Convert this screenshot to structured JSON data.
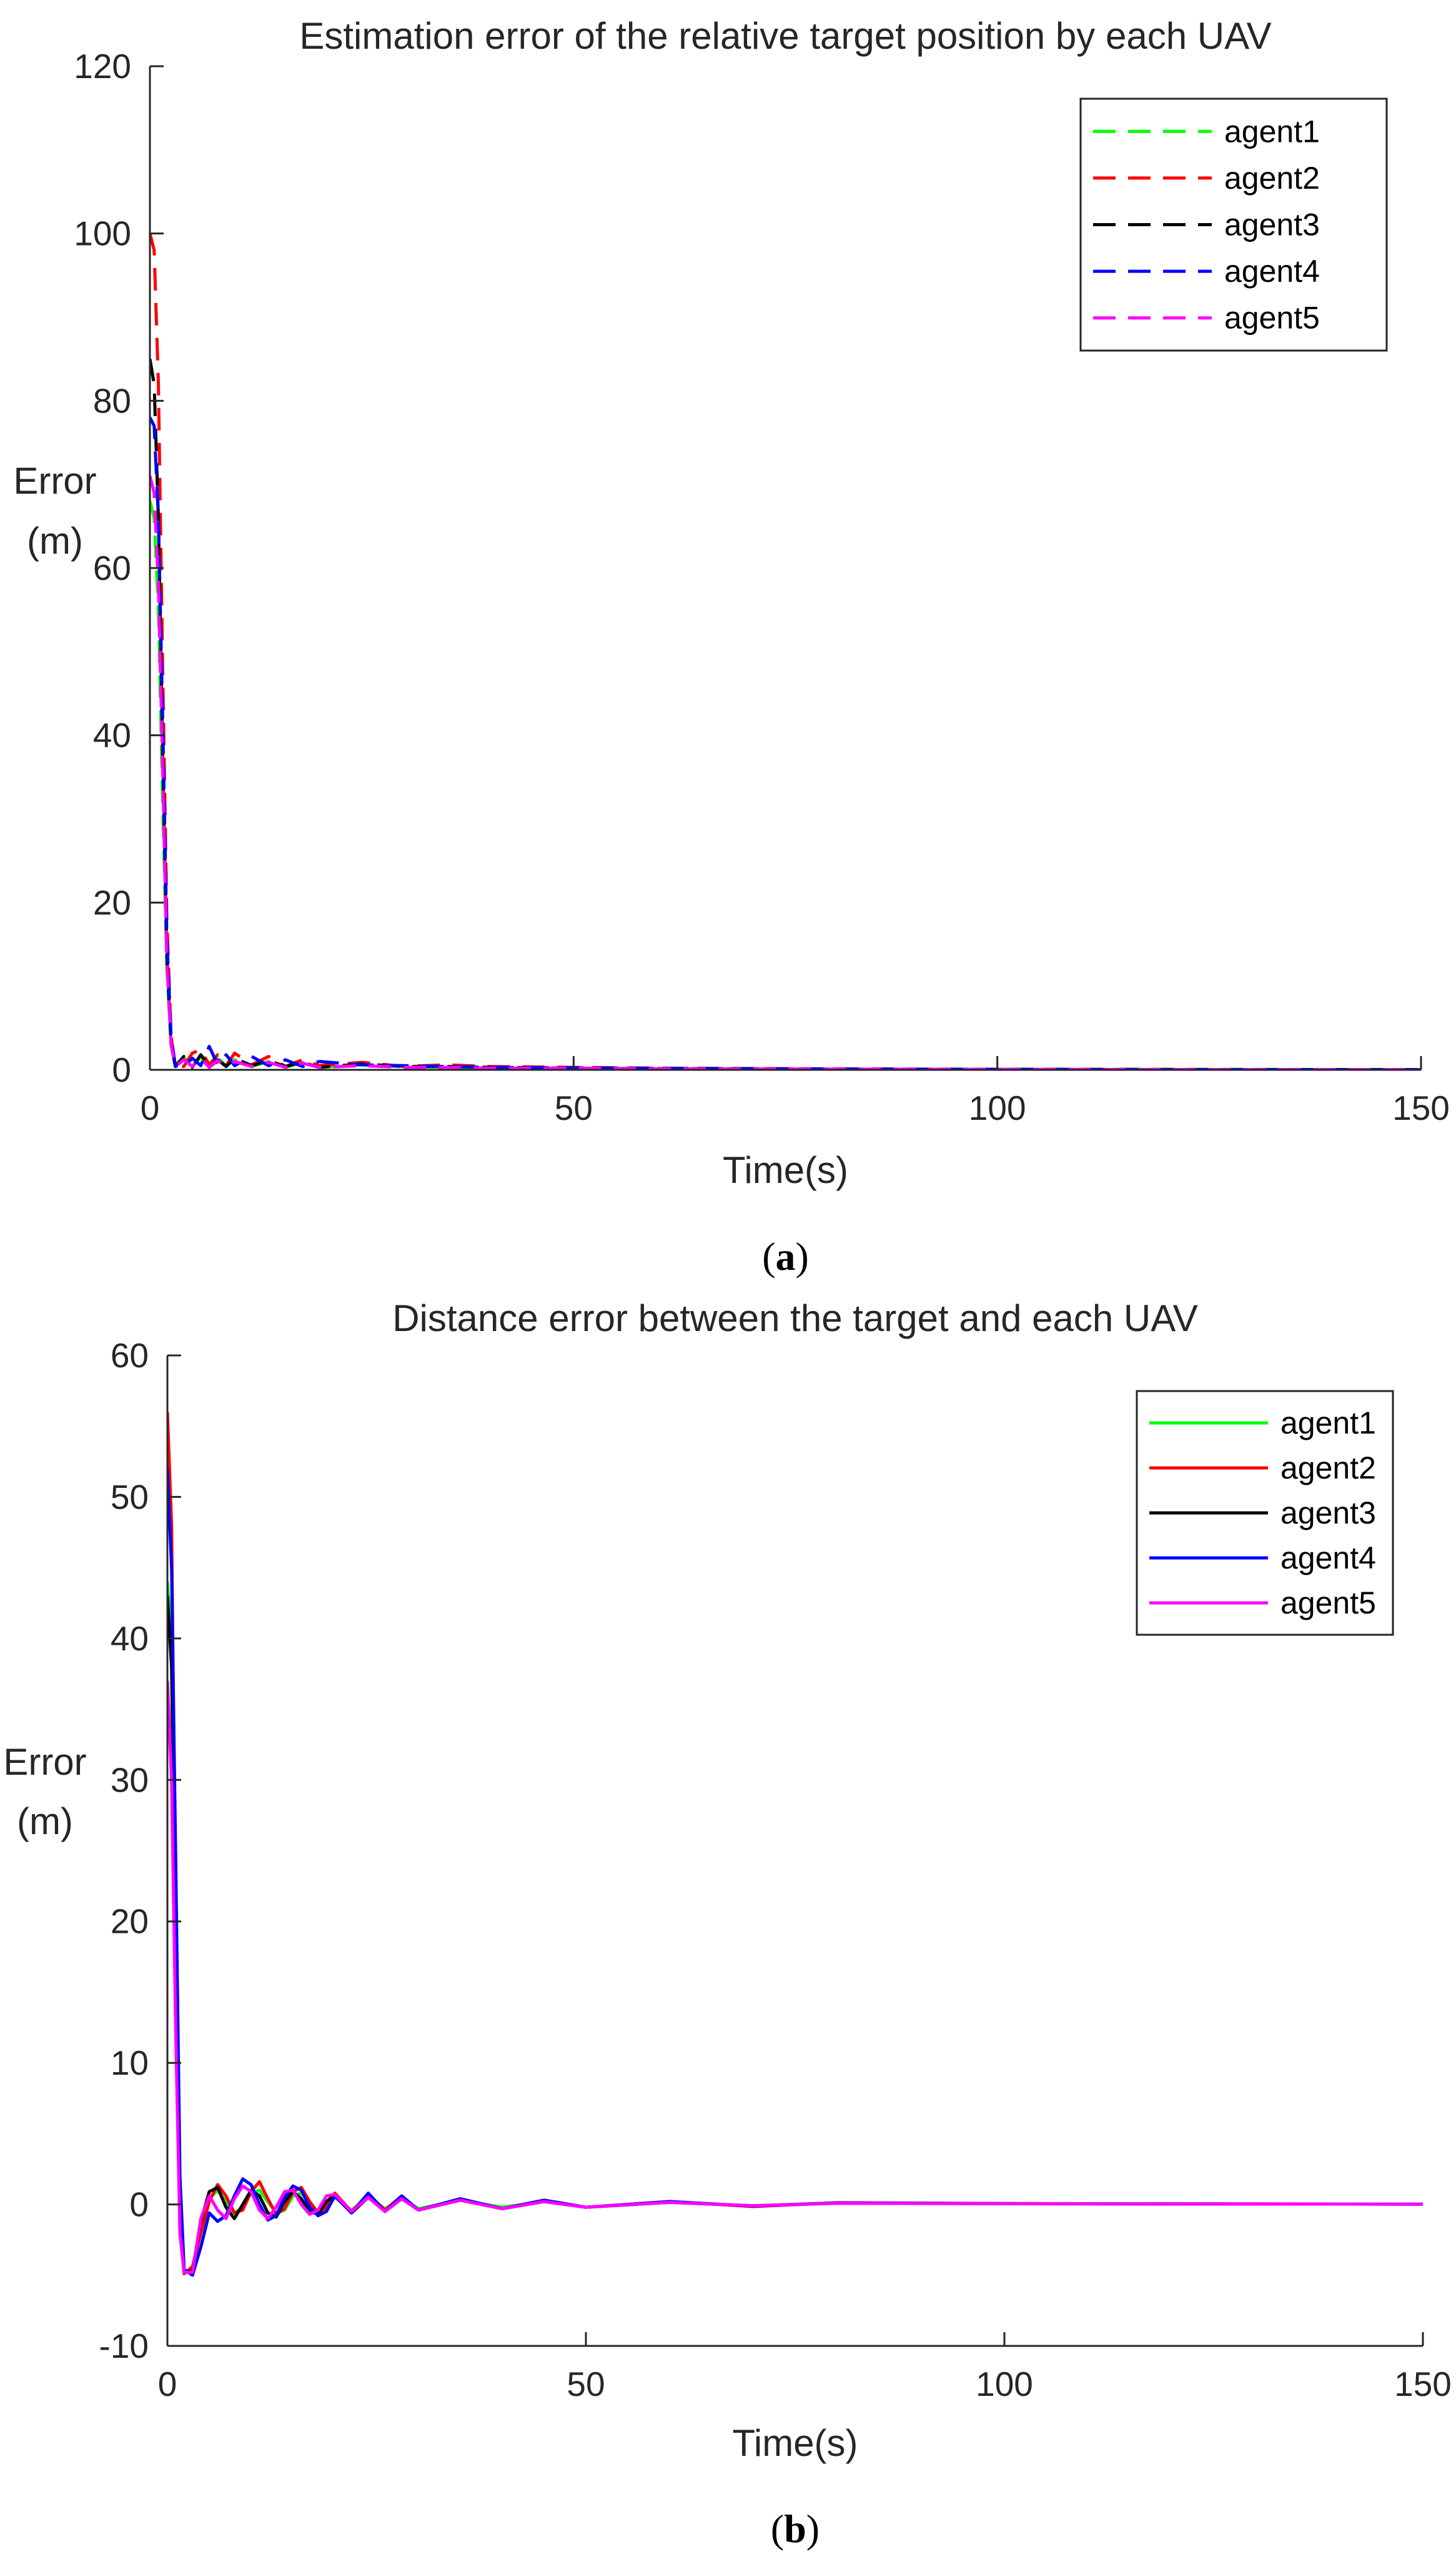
{
  "chart_data": [
    {
      "type": "line",
      "panel_label_open": "(",
      "panel_label": "a",
      "panel_label_close": ")",
      "title": "Estimation error of the relative target position by each UAV",
      "xlabel": "Time(s)",
      "ylabel_line1": "Error",
      "ylabel_line2": "(m)",
      "xlim": [
        0,
        150
      ],
      "ylim": [
        0,
        120
      ],
      "xticks": [
        0,
        50,
        100,
        150
      ],
      "yticks": [
        0,
        20,
        40,
        60,
        80,
        100,
        120
      ],
      "grid": false,
      "legend_position": "top-right",
      "line_style": "dashed",
      "series": [
        {
          "name": "agent1",
          "color": "#00ff00",
          "x": [
            0,
            0.5,
            1,
            1.5,
            2,
            2.5,
            3,
            4,
            5,
            6,
            7,
            8,
            9,
            10,
            12,
            14,
            16,
            18,
            20,
            25,
            30,
            35,
            40,
            50,
            60,
            80,
            100,
            125,
            150
          ],
          "y": [
            68,
            66,
            55,
            32,
            12,
            3,
            0.6,
            1.5,
            0.3,
            1.6,
            0.4,
            1.4,
            0.5,
            1.2,
            0.4,
            1.0,
            0.3,
            0.9,
            0.3,
            0.6,
            0.4,
            0.3,
            0.3,
            0.2,
            0.15,
            0.1,
            0.06,
            0.04,
            0.03
          ]
        },
        {
          "name": "agent2",
          "color": "#ff0000",
          "x": [
            0,
            0.5,
            1,
            1.5,
            2,
            2.5,
            3,
            4,
            5,
            6,
            7,
            8,
            9,
            10,
            12,
            14,
            16,
            18,
            20,
            25,
            30,
            35,
            40,
            50,
            60,
            80,
            100,
            125,
            150
          ],
          "y": [
            100,
            98,
            82,
            48,
            18,
            4,
            0.5,
            0.4,
            2.0,
            2.4,
            0.6,
            1.8,
            0.5,
            2.0,
            0.6,
            1.6,
            0.4,
            1.2,
            0.5,
            0.9,
            0.4,
            0.6,
            0.4,
            0.3,
            0.2,
            0.12,
            0.07,
            0.05,
            0.03
          ]
        },
        {
          "name": "agent3",
          "color": "#000000",
          "x": [
            0,
            0.5,
            1,
            1.5,
            2,
            2.5,
            3,
            4,
            5,
            6,
            7,
            8,
            9,
            10,
            12,
            14,
            16,
            18,
            20,
            25,
            30,
            35,
            40,
            50,
            60,
            80,
            100,
            125,
            150
          ],
          "y": [
            85,
            82,
            66,
            38,
            14,
            3,
            0.4,
            1.6,
            0.3,
            1.8,
            0.5,
            1.2,
            0.4,
            1.4,
            0.5,
            1.1,
            0.4,
            0.9,
            0.3,
            0.7,
            0.4,
            0.4,
            0.3,
            0.2,
            0.15,
            0.1,
            0.06,
            0.04,
            0.03
          ]
        },
        {
          "name": "agent4",
          "color": "#0000ff",
          "x": [
            0,
            0.5,
            1,
            1.5,
            2,
            2.5,
            3,
            4,
            5,
            6,
            7,
            8,
            9,
            10,
            12,
            14,
            16,
            18,
            20,
            25,
            30,
            35,
            40,
            50,
            60,
            80,
            100,
            125,
            150
          ],
          "y": [
            78,
            77,
            66,
            42,
            16,
            4,
            0.5,
            0.3,
            1.4,
            0.5,
            2.8,
            0.6,
            1.8,
            0.5,
            1.6,
            0.5,
            1.2,
            0.4,
            1.0,
            0.6,
            0.5,
            0.4,
            0.3,
            0.25,
            0.18,
            0.1,
            0.06,
            0.04,
            0.03
          ]
        },
        {
          "name": "agent5",
          "color": "#ff00ff",
          "x": [
            0,
            0.5,
            1,
            1.5,
            2,
            2.5,
            3,
            4,
            5,
            6,
            7,
            8,
            9,
            10,
            12,
            14,
            16,
            18,
            20,
            25,
            30,
            35,
            40,
            50,
            60,
            80,
            100,
            125,
            150
          ],
          "y": [
            71,
            69,
            58,
            36,
            13,
            3,
            0.4,
            1.2,
            0.4,
            1.4,
            0.3,
            1.1,
            0.5,
            1.0,
            0.4,
            0.9,
            0.3,
            0.8,
            0.3,
            0.5,
            0.3,
            0.3,
            0.2,
            0.2,
            0.12,
            0.08,
            0.05,
            0.03,
            0.02
          ]
        }
      ]
    },
    {
      "type": "line",
      "panel_label_open": "(",
      "panel_label": "b",
      "panel_label_close": ")",
      "title": "Distance error between the target and each UAV",
      "xlabel": "Time(s)",
      "ylabel_line1": "Error",
      "ylabel_line2": "(m)",
      "xlim": [
        0,
        150
      ],
      "ylim": [
        -10,
        60
      ],
      "xticks": [
        0,
        50,
        100,
        150
      ],
      "yticks": [
        -10,
        0,
        10,
        20,
        30,
        40,
        50,
        60
      ],
      "grid": false,
      "legend_position": "top-right",
      "line_style": "solid",
      "series": [
        {
          "name": "agent1",
          "color": "#00ff00",
          "x": [
            0,
            0.5,
            1,
            1.5,
            2,
            3,
            4,
            5,
            6,
            7,
            8,
            9,
            10,
            11,
            12,
            13,
            14,
            15,
            16,
            17,
            18,
            19,
            20,
            22,
            24,
            26,
            28,
            30,
            35,
            40,
            45,
            50,
            60,
            70,
            80,
            100,
            125,
            150
          ],
          "y": [
            44,
            40,
            22,
            0,
            -4.8,
            -4.6,
            -1.5,
            0.4,
            1.0,
            0.2,
            -0.6,
            -0.2,
            0.8,
            1.0,
            0.2,
            -0.6,
            -0.4,
            0.6,
            0.8,
            0.1,
            -0.5,
            -0.3,
            0.5,
            -0.4,
            0.5,
            -0.3,
            0.4,
            -0.3,
            0.3,
            -0.2,
            0.2,
            -0.2,
            0.15,
            -0.1,
            0.1,
            0.05,
            0.03,
            0.02
          ]
        },
        {
          "name": "agent2",
          "color": "#ff0000",
          "x": [
            0,
            0.5,
            1,
            1.5,
            2,
            3,
            4,
            5,
            6,
            7,
            8,
            9,
            10,
            11,
            12,
            13,
            14,
            15,
            16,
            17,
            18,
            19,
            20,
            22,
            24,
            26,
            28,
            30,
            35,
            40,
            45,
            50,
            60,
            70,
            80,
            100,
            125,
            150
          ],
          "y": [
            56,
            48,
            20,
            -2,
            -4.9,
            -4.4,
            -2.0,
            0.2,
            1.4,
            0.6,
            -0.6,
            -0.4,
            0.9,
            1.6,
            0.4,
            -0.7,
            -0.3,
            0.9,
            1.2,
            0.2,
            -0.6,
            -0.2,
            0.8,
            -0.5,
            0.7,
            -0.4,
            0.6,
            -0.4,
            0.4,
            -0.3,
            0.3,
            -0.2,
            0.2,
            -0.15,
            0.12,
            0.06,
            0.04,
            0.02
          ]
        },
        {
          "name": "agent3",
          "color": "#000000",
          "x": [
            0,
            0.5,
            1,
            1.5,
            2,
            3,
            4,
            5,
            6,
            7,
            8,
            9,
            10,
            11,
            12,
            13,
            14,
            15,
            16,
            17,
            18,
            19,
            20,
            22,
            24,
            26,
            28,
            30,
            35,
            40,
            45,
            50,
            60,
            70,
            80,
            100,
            125,
            150
          ],
          "y": [
            43,
            38,
            18,
            -1,
            -4.8,
            -4.7,
            -1.2,
            0.9,
            1.2,
            -0.2,
            -1.0,
            0.0,
            1.0,
            0.6,
            -0.6,
            -0.9,
            0.2,
            0.9,
            0.4,
            -0.5,
            -0.7,
            0.2,
            0.7,
            -0.6,
            0.5,
            -0.5,
            0.4,
            -0.4,
            0.3,
            -0.3,
            0.2,
            -0.2,
            0.15,
            -0.1,
            0.1,
            0.05,
            0.03,
            0.02
          ]
        },
        {
          "name": "agent4",
          "color": "#0000ff",
          "x": [
            0,
            0.5,
            1,
            1.5,
            2,
            3,
            4,
            5,
            6,
            7,
            8,
            9,
            10,
            11,
            12,
            13,
            14,
            15,
            16,
            17,
            18,
            19,
            20,
            22,
            24,
            26,
            28,
            30,
            35,
            40,
            45,
            50,
            60,
            70,
            80,
            100,
            125,
            150
          ],
          "y": [
            52,
            45,
            24,
            2,
            -4.6,
            -5.0,
            -3.0,
            -0.6,
            -1.2,
            -0.8,
            0.6,
            1.8,
            1.4,
            0.0,
            -1.1,
            -0.8,
            0.5,
            1.3,
            1.0,
            -0.2,
            -0.8,
            -0.5,
            0.6,
            -0.6,
            0.8,
            -0.5,
            0.6,
            -0.4,
            0.4,
            -0.3,
            0.3,
            -0.2,
            0.2,
            -0.12,
            0.1,
            0.05,
            0.03,
            0.02
          ]
        },
        {
          "name": "agent5",
          "color": "#ff00ff",
          "x": [
            0,
            0.5,
            1,
            1.5,
            2,
            3,
            4,
            5,
            6,
            7,
            8,
            9,
            10,
            11,
            12,
            13,
            14,
            15,
            16,
            17,
            18,
            19,
            20,
            22,
            24,
            26,
            28,
            30,
            35,
            40,
            45,
            50,
            60,
            70,
            80,
            100,
            125,
            150
          ],
          "y": [
            37,
            30,
            12,
            -2,
            -4.8,
            -4.8,
            -1.0,
            0.6,
            -0.4,
            -1.0,
            0.4,
            1.3,
            0.9,
            -0.4,
            -1.0,
            -0.2,
            0.9,
            1.0,
            0.0,
            -0.7,
            -0.4,
            0.6,
            0.7,
            -0.5,
            0.5,
            -0.5,
            0.4,
            -0.4,
            0.3,
            -0.3,
            0.2,
            -0.2,
            0.15,
            -0.1,
            0.08,
            0.05,
            0.03,
            0.02
          ]
        }
      ]
    }
  ]
}
